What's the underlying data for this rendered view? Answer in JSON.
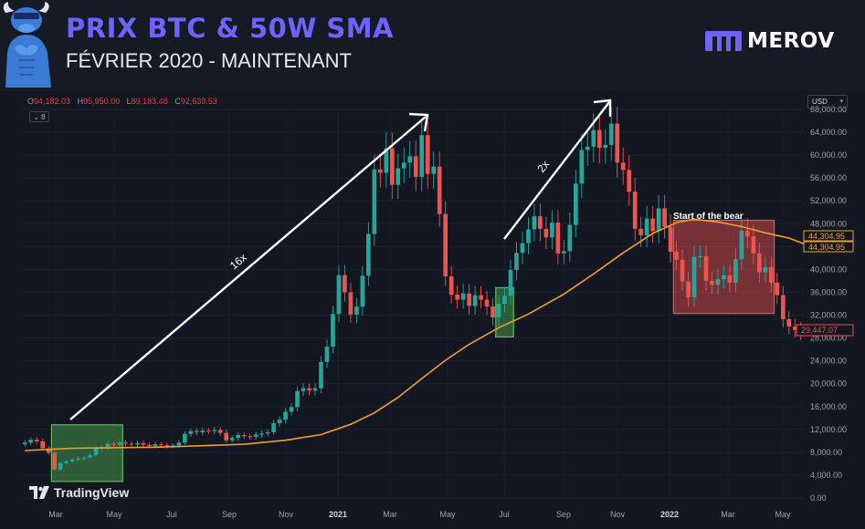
{
  "header": {
    "title": "PRIX BTC & 50W SMA",
    "subtitle": "FÉVRIER 2020 - MAINTENANT",
    "brand": "MEROV"
  },
  "toolbar": {
    "ohlc": [
      {
        "key": "O",
        "value": "94,182.03"
      },
      {
        "key": "H",
        "value": "95,950.00"
      },
      {
        "key": "L",
        "value": "89,183.48"
      },
      {
        "key": "C",
        "value": "92,639.53"
      }
    ],
    "indicator_count": "8",
    "currency": "USD"
  },
  "watermark": "TradingView",
  "colors": {
    "up": "#26a69a",
    "down": "#ef5350",
    "sma": "#f0a02c",
    "accent": "#6f63ff"
  },
  "chart_data": {
    "type": "candlestick",
    "title": "PRIX BTC & 50W SMA",
    "interval": "weekly",
    "x_ticks": [
      "Mar",
      "May",
      "Jul",
      "Sep",
      "Nov",
      "2021",
      "Mar",
      "May",
      "Jul",
      "Sep",
      "Nov",
      "2022",
      "Mar",
      "May"
    ],
    "y_ticks": [
      "0.00",
      "4,000.00",
      "8,000.00",
      "12,000.00",
      "16,000.00",
      "20,000.00",
      "24,000.00",
      "28,000.00",
      "32,000.00",
      "36,000.00",
      "40,000.00",
      "44,000.00",
      "48,000.00",
      "52,000.00",
      "56,000.00",
      "60,000.00",
      "64,000.00",
      "68,000.00"
    ],
    "ylim": [
      0,
      68000
    ],
    "scale": "linear",
    "candles": [
      [
        9400,
        9700
      ],
      [
        9700,
        10200
      ],
      [
        10200,
        9900
      ],
      [
        9900,
        8700
      ],
      [
        8700,
        7900
      ],
      [
        7900,
        5000
      ],
      [
        5000,
        6100
      ],
      [
        6100,
        6400
      ],
      [
        6400,
        6700
      ],
      [
        6700,
        6900
      ],
      [
        6900,
        7100
      ],
      [
        7100,
        7500
      ],
      [
        7500,
        8700
      ],
      [
        8700,
        8900
      ],
      [
        8900,
        9500
      ],
      [
        9500,
        9300
      ],
      [
        9300,
        9700
      ],
      [
        9700,
        9500
      ],
      [
        9500,
        9400
      ],
      [
        9400,
        9600
      ],
      [
        9600,
        9300
      ],
      [
        9300,
        9100
      ],
      [
        9100,
        9400
      ],
      [
        9400,
        9250
      ],
      [
        9250,
        9100
      ],
      [
        9100,
        9200
      ],
      [
        9200,
        9700
      ],
      [
        9700,
        11200
      ],
      [
        11200,
        11700
      ],
      [
        11700,
        11500
      ],
      [
        11500,
        11800
      ],
      [
        11800,
        11700
      ],
      [
        11700,
        11900
      ],
      [
        11900,
        11400
      ],
      [
        11400,
        10100
      ],
      [
        10100,
        10500
      ],
      [
        10500,
        11000
      ],
      [
        11000,
        10800
      ],
      [
        10800,
        10700
      ],
      [
        10700,
        11100
      ],
      [
        11100,
        11300
      ],
      [
        11300,
        11500
      ],
      [
        11500,
        13100
      ],
      [
        13100,
        13700
      ],
      [
        13700,
        15100
      ],
      [
        15100,
        15900
      ],
      [
        15900,
        18700
      ],
      [
        18700,
        19200
      ],
      [
        19200,
        18800
      ],
      [
        18800,
        19200
      ],
      [
        19200,
        23800
      ],
      [
        23800,
        26500
      ],
      [
        26500,
        32200
      ],
      [
        32200,
        39000
      ],
      [
        39000,
        36000
      ],
      [
        36000,
        32100
      ],
      [
        32100,
        33500
      ],
      [
        33500,
        38900
      ],
      [
        38900,
        46200
      ],
      [
        46200,
        57500
      ],
      [
        57500,
        56900
      ],
      [
        56900,
        61200
      ],
      [
        61200,
        54800
      ],
      [
        54800,
        57700
      ],
      [
        57700,
        58700
      ],
      [
        58700,
        59800
      ],
      [
        59800,
        56200
      ],
      [
        56200,
        63500
      ],
      [
        63500,
        56700
      ],
      [
        56700,
        58000
      ],
      [
        58000,
        49700
      ],
      [
        49700,
        38800
      ],
      [
        38800,
        35600
      ],
      [
        35600,
        34700
      ],
      [
        34700,
        35800
      ],
      [
        35800,
        33600
      ],
      [
        33600,
        35500
      ],
      [
        35500,
        34700
      ],
      [
        34700,
        33500
      ],
      [
        33500,
        31600
      ],
      [
        31600,
        34000
      ],
      [
        34000,
        35400
      ],
      [
        35400,
        39900
      ],
      [
        39900,
        42900
      ],
      [
        42900,
        44600
      ],
      [
        44600,
        47000
      ],
      [
        47000,
        49300
      ],
      [
        49300,
        47100
      ],
      [
        47100,
        45600
      ],
      [
        45600,
        48200
      ],
      [
        48200,
        42800
      ],
      [
        42800,
        43200
      ],
      [
        43200,
        47800
      ],
      [
        47800,
        55000
      ],
      [
        55000,
        60900
      ],
      [
        60900,
        61500
      ],
      [
        61500,
        64400
      ],
      [
        64400,
        61300
      ],
      [
        61300,
        61800
      ],
      [
        61800,
        65500
      ],
      [
        65500,
        58700
      ],
      [
        58700,
        57400
      ],
      [
        57400,
        53600
      ],
      [
        53600,
        47100
      ],
      [
        47100,
        46000
      ],
      [
        46000,
        48900
      ],
      [
        48900,
        46700
      ],
      [
        46700,
        50700
      ],
      [
        50700,
        47500
      ],
      [
        47500,
        43100
      ],
      [
        43100,
        41700
      ],
      [
        41700,
        37900
      ],
      [
        37900,
        35100
      ],
      [
        35100,
        42200
      ],
      [
        42200,
        42300
      ],
      [
        42300,
        38000
      ],
      [
        38000,
        37300
      ],
      [
        37300,
        38300
      ],
      [
        38300,
        39000
      ],
      [
        39000,
        37700
      ],
      [
        37700,
        41800
      ],
      [
        41800,
        46800
      ],
      [
        46800,
        45800
      ],
      [
        45800,
        42800
      ],
      [
        42800,
        39500
      ],
      [
        39500,
        40400
      ],
      [
        40400,
        37700
      ],
      [
        37700,
        35500
      ],
      [
        35500,
        31300
      ],
      [
        31300,
        30000
      ],
      [
        30000,
        29400
      ],
      [
        29400,
        28900
      ]
    ],
    "sma_50w": [
      [
        0,
        8300
      ],
      [
        8,
        8700
      ],
      [
        15,
        8800
      ],
      [
        23,
        8900
      ],
      [
        31,
        9200
      ],
      [
        37,
        9400
      ],
      [
        44,
        10100
      ],
      [
        50,
        11100
      ],
      [
        55,
        12900
      ],
      [
        59,
        14900
      ],
      [
        63,
        17600
      ],
      [
        67,
        20900
      ],
      [
        71,
        24100
      ],
      [
        75,
        26900
      ],
      [
        80,
        29800
      ],
      [
        85,
        32200
      ],
      [
        91,
        35700
      ],
      [
        96,
        39200
      ],
      [
        101,
        42900
      ],
      [
        106,
        46300
      ],
      [
        110,
        48200
      ],
      [
        113,
        48800
      ],
      [
        117,
        48300
      ],
      [
        121,
        47500
      ],
      [
        125,
        46400
      ],
      [
        129,
        45500
      ],
      [
        132,
        44300
      ]
    ],
    "sma_last": "44,304.95",
    "price_last": "29,447.07",
    "annotations": {
      "arrow_1_label": "16x",
      "arrow_2_label": "2x",
      "bear_label": "Start of the bear"
    },
    "highlight_boxes": [
      {
        "color": "green",
        "x_from": 5,
        "x_to": 16,
        "y_from": 2900,
        "y_to": 12800
      },
      {
        "color": "green",
        "x_from": 80,
        "x_to": 82,
        "y_from": 28200,
        "y_to": 36800
      },
      {
        "color": "red",
        "x_from": 110,
        "x_to": 126,
        "y_from": 32300,
        "y_to": 48600
      }
    ]
  }
}
